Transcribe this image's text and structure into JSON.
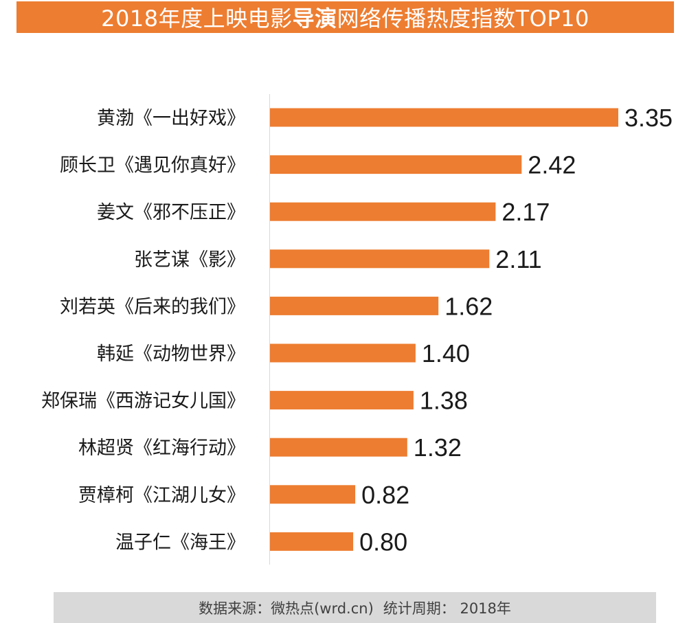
{
  "title": {
    "prefix": "2018年度上映电影",
    "emphasis": "导演",
    "suffix": "网络传播热度指数TOP10"
  },
  "chart_data": {
    "type": "bar",
    "orientation": "horizontal",
    "title": "2018年度上映电影导演网络传播热度指数TOP10",
    "xlabel": "",
    "ylabel": "",
    "grid": false,
    "xlim": [
      0,
      3.35
    ],
    "color": "#ED7D31",
    "categories": [
      "黄渤《一出好戏》",
      "顾长卫《遇见你真好》",
      "姜文《邪不压正》",
      "张艺谋《影》",
      "刘若英《后来的我们》",
      "韩延《动物世界》",
      "郑保瑞《西游记女儿国》",
      "林超贤《红海行动》",
      "贾樟柯《江湖儿女》",
      "温子仁《海王》"
    ],
    "values": [
      3.35,
      2.42,
      2.17,
      2.11,
      1.62,
      1.4,
      1.38,
      1.32,
      0.82,
      0.8
    ],
    "value_labels": [
      "3.35",
      "2.42",
      "2.17",
      "2.11",
      "1.62",
      "1.40",
      "1.38",
      "1.32",
      "0.82",
      "0.80"
    ]
  },
  "footer": {
    "source": "数据来源：微热点(wrd.cn)",
    "period": "统计周期： 2018年"
  }
}
